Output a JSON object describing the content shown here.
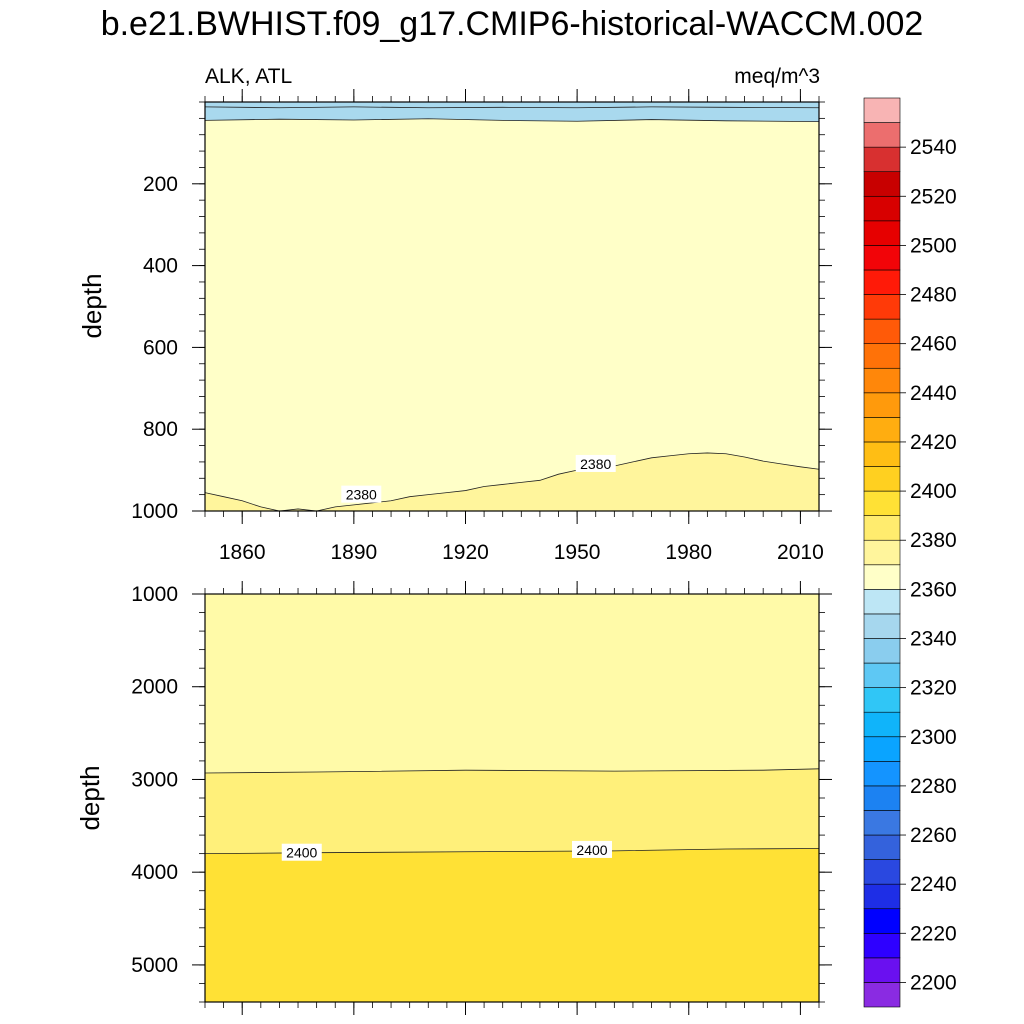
{
  "figure": {
    "title": "b.e21.BWHIST.f09_g17.CMIP6-historical-WACCM.002",
    "left_string": "ALK, ATL",
    "right_string": "meq/m^3"
  },
  "chart_data": [
    {
      "type": "heatmap",
      "subtype": "filled-contour",
      "panel": "upper",
      "ylabel": "depth",
      "xlim": [
        1850,
        2015
      ],
      "ylim": [
        0,
        1000
      ],
      "y_reversed": true,
      "x_ticks": [
        1860,
        1890,
        1920,
        1950,
        1980,
        2010
      ],
      "y_ticks": [
        200,
        400,
        600,
        800,
        1000
      ],
      "fields": [
        {
          "range": "2350-2360",
          "color": "#a9d9ee",
          "depth_top": 0,
          "depth_bottom": 45
        },
        {
          "range": "2360-2370",
          "color": "#b8e2f2",
          "depth_top": 0,
          "depth_bottom": 45
        },
        {
          "range": "2370-2380",
          "color": "#ffffc8",
          "depth_top": 45,
          "depth_bottom": 960
        },
        {
          "range": "2380-2390",
          "color": "#fff59c",
          "depth_top": 880,
          "depth_bottom": 1000
        }
      ],
      "contours": [
        {
          "level": 2360,
          "x": [
            1850,
            1870,
            1890,
            1910,
            1930,
            1950,
            1970,
            1990,
            2015
          ],
          "y": [
            12,
            14,
            12,
            14,
            13,
            14,
            12,
            13,
            14
          ]
        },
        {
          "level": 2370,
          "x": [
            1850,
            1870,
            1890,
            1910,
            1930,
            1950,
            1970,
            1990,
            2015
          ],
          "y": [
            45,
            42,
            44,
            41,
            45,
            47,
            43,
            46,
            48
          ]
        },
        {
          "level": 2380,
          "label": "2380",
          "x": [
            1850,
            1855,
            1860,
            1865,
            1870,
            1875,
            1880,
            1885,
            1890,
            1895,
            1900,
            1905,
            1910,
            1915,
            1920,
            1925,
            1930,
            1935,
            1940,
            1945,
            1950,
            1955,
            1960,
            1965,
            1970,
            1975,
            1980,
            1985,
            1990,
            1995,
            2000,
            2005,
            2010,
            2015
          ],
          "y": [
            955,
            965,
            975,
            990,
            1000,
            995,
            1000,
            990,
            985,
            980,
            975,
            965,
            960,
            955,
            950,
            940,
            935,
            930,
            925,
            910,
            900,
            895,
            890,
            880,
            870,
            865,
            860,
            858,
            860,
            868,
            878,
            885,
            892,
            898
          ]
        }
      ],
      "labels": [
        {
          "text": "2380",
          "x": 1892,
          "y": 960
        },
        {
          "text": "2380",
          "x": 1955,
          "y": 885
        }
      ]
    },
    {
      "type": "heatmap",
      "subtype": "filled-contour",
      "panel": "lower",
      "ylabel": "depth",
      "xlim": [
        1850,
        2015
      ],
      "ylim": [
        1000,
        5400
      ],
      "y_reversed": true,
      "y_ticks": [
        1000,
        2000,
        3000,
        4000,
        5000
      ],
      "fields": [
        {
          "range": "2380-2390",
          "color": "#fffaa8",
          "depth_top": 1000,
          "depth_bottom": 2950
        },
        {
          "range": "2390-2400",
          "color": "#fff07a",
          "depth_top": 2950,
          "depth_bottom": 3800
        },
        {
          "range": "2400-2410",
          "color": "#ffe135",
          "depth_top": 3800,
          "depth_bottom": 5400
        }
      ],
      "contours": [
        {
          "level": 2390,
          "x": [
            1850,
            1880,
            1920,
            1960,
            2000,
            2015
          ],
          "y": [
            2930,
            2920,
            2900,
            2910,
            2900,
            2885
          ]
        },
        {
          "level": 2400,
          "label": "2400",
          "x": [
            1850,
            1880,
            1920,
            1960,
            1990,
            2015
          ],
          "y": [
            3800,
            3790,
            3780,
            3770,
            3750,
            3745
          ]
        }
      ],
      "labels": [
        {
          "text": "2400",
          "x": 1876,
          "y": 3790
        },
        {
          "text": "2400",
          "x": 1954,
          "y": 3760
        }
      ]
    }
  ],
  "colorbar": {
    "tick_labels": [
      "2200",
      "2220",
      "2240",
      "2260",
      "2280",
      "2300",
      "2320",
      "2340",
      "2360",
      "2380",
      "2400",
      "2420",
      "2440",
      "2460",
      "2480",
      "2500",
      "2520",
      "2540"
    ],
    "colors_bottom_to_top": [
      "#8a2be2",
      "#6a10f0",
      "#2e00ff",
      "#0000ff",
      "#1e2ee6",
      "#2a48e0",
      "#3462dc",
      "#3a78e2",
      "#1c82f2",
      "#1494ff",
      "#0aa4ff",
      "#10b4fa",
      "#30c6f6",
      "#5ec8f4",
      "#8acdee",
      "#a6d7ee",
      "#bde6f5",
      "#ffffc8",
      "#fff59c",
      "#ffec6e",
      "#ffe135",
      "#ffd020",
      "#ffbe14",
      "#ffad10",
      "#ff9a0c",
      "#ff870a",
      "#ff7208",
      "#ff5a08",
      "#ff3a08",
      "#ff1a08",
      "#f20408",
      "#e60000",
      "#d80000",
      "#c80000",
      "#d83030",
      "#ec6e6e",
      "#f8b4b4"
    ]
  }
}
